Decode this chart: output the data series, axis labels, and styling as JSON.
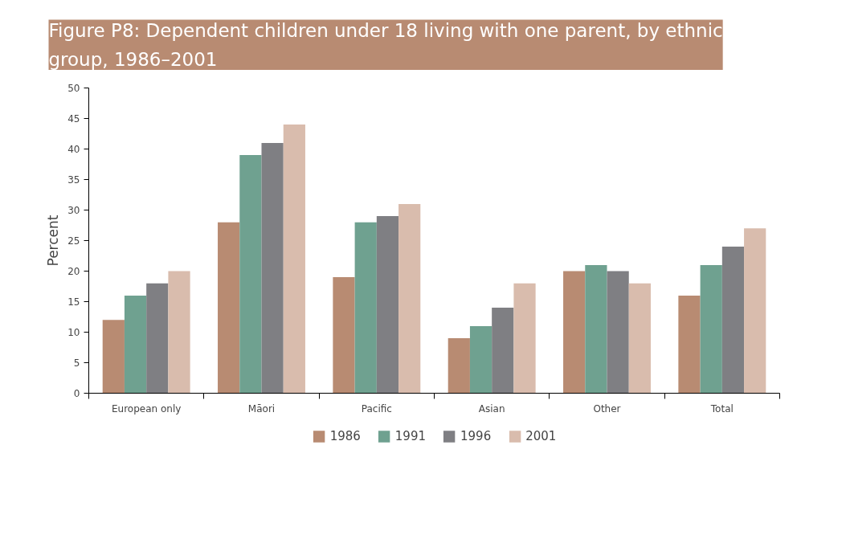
{
  "chart_data": {
    "type": "bar",
    "title": "Figure P8: Dependent children under 18 living with one parent, by ethnic group, 1986–2001",
    "ylabel": "Percent",
    "categories": [
      "European only",
      "Māori",
      "Pacific",
      "Asian",
      "Other",
      "Total"
    ],
    "series": [
      {
        "name": "1986",
        "color": "#b88b72",
        "values": [
          12,
          28,
          19,
          9,
          20,
          16
        ]
      },
      {
        "name": "1991",
        "color": "#6fa190",
        "values": [
          16,
          39,
          28,
          11,
          21,
          21
        ]
      },
      {
        "name": "1996",
        "color": "#7f7f83",
        "values": [
          18,
          41,
          29,
          14,
          20,
          24
        ]
      },
      {
        "name": "2001",
        "color": "#d9bcad",
        "values": [
          20,
          44,
          31,
          18,
          18,
          27
        ]
      }
    ],
    "ylim": [
      0,
      50
    ],
    "yticks": [
      0,
      5,
      10,
      15,
      20,
      25,
      30,
      35,
      40,
      45,
      50
    ],
    "grid": false,
    "legend": "bottom"
  }
}
